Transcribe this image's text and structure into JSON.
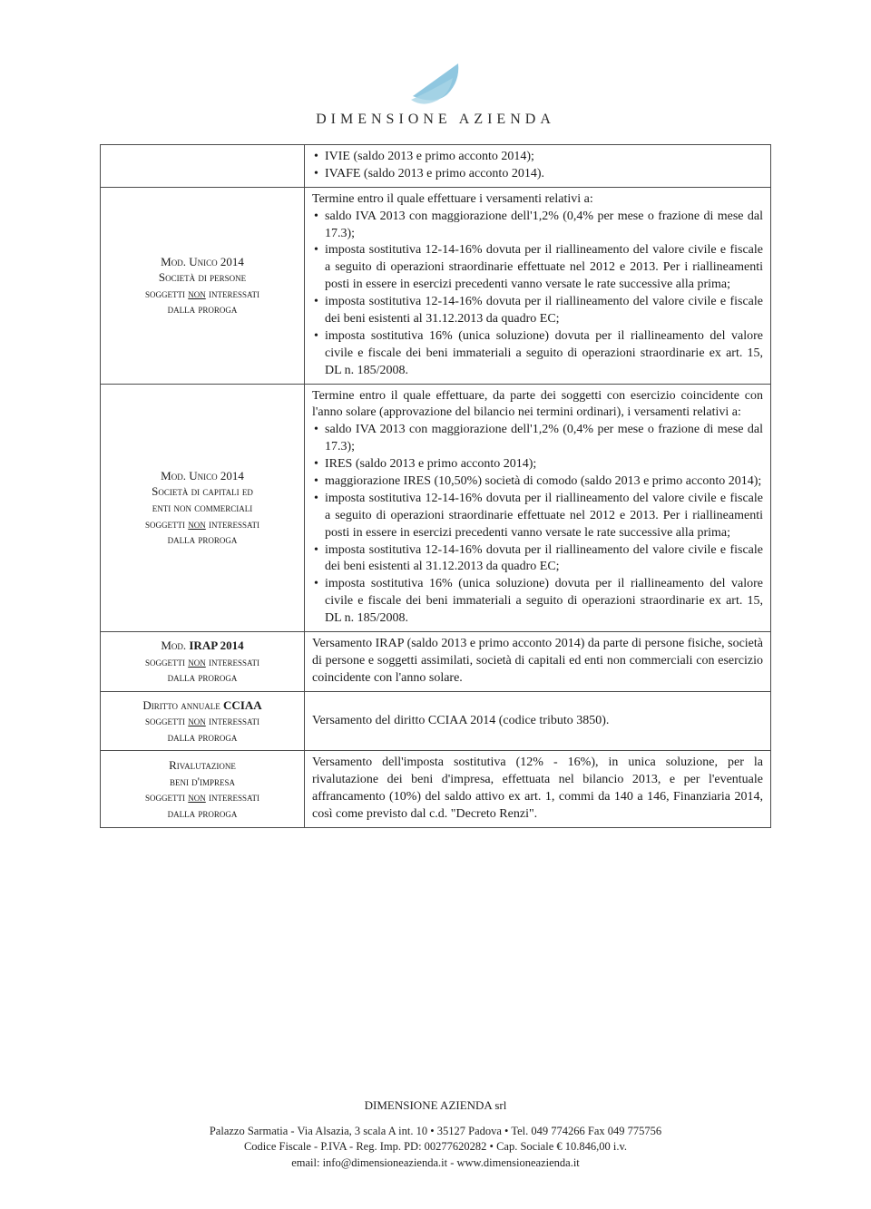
{
  "logo": {
    "text": "DIMENSIONE AZIENDA",
    "color": "#8fc7e0"
  },
  "rows": [
    {
      "left_html": "",
      "right_intro": "",
      "right_bullets": [
        "IVIE (saldo 2013 e primo acconto 2014);",
        "IVAFE (saldo 2013 e primo acconto 2014)."
      ]
    },
    {
      "left_lines": [
        {
          "text": "Mod. Unico 2014",
          "sc": true
        },
        {
          "text": "Società di persone",
          "sc": true
        },
        {
          "text_pre": "soggetti ",
          "underlined": "non",
          "text_post": " interessati",
          "sc": true
        },
        {
          "text": "dalla proroga",
          "sc": true
        }
      ],
      "right_intro": "Termine entro il quale effettuare i versamenti relativi a:",
      "right_bullets": [
        "saldo IVA 2013 con maggiorazione dell'1,2% (0,4% per mese o frazione di mese dal 17.3);",
        "imposta sostitutiva 12-14-16% dovuta per il riallineamento del valore civile e fiscale a seguito di operazioni straordinarie effettuate nel 2012 e 2013. Per i riallineamenti posti in essere in esercizi precedenti vanno versate le rate successive alla prima;",
        "imposta sostitutiva 12-14-16% dovuta per il riallineamento del valore civile e fiscale dei beni esistenti al 31.12.2013 da quadro EC;",
        "imposta sostitutiva 16% (unica soluzione) dovuta per il riallineamento del valore civile e fiscale dei beni immateriali a seguito di operazioni straordinarie ex art. 15, DL n. 185/2008."
      ]
    },
    {
      "left_lines": [
        {
          "text": "Mod. Unico 2014",
          "sc": true
        },
        {
          "text": "Società di capitali ed",
          "sc": true
        },
        {
          "text": "enti non commerciali",
          "sc": true
        },
        {
          "text_pre": "soggetti ",
          "underlined": "non",
          "text_post": " interessati",
          "sc": true
        },
        {
          "text": "dalla proroga",
          "sc": true
        }
      ],
      "right_intro": "Termine entro il quale effettuare, da parte dei soggetti con esercizio coincidente con l'anno solare (approvazione del bilancio nei termini ordinari), i versamenti relativi a:",
      "right_bullets": [
        "saldo IVA 2013 con maggiorazione dell'1,2% (0,4% per mese o frazione di mese dal 17.3);",
        "IRES (saldo 2013 e primo acconto 2014);",
        "maggiorazione IRES (10,50%) società di comodo (saldo 2013 e primo acconto 2014);",
        "imposta sostitutiva 12-14-16% dovuta per il riallineamento del valore civile e fiscale a seguito di operazioni straordinarie effettuate nel 2012 e 2013. Per i riallineamenti posti in essere in esercizi precedenti vanno versate le rate successive alla prima;",
        "imposta sostitutiva 12-14-16% dovuta per il riallineamento del valore civile e fiscale dei beni esistenti al 31.12.2013 da quadro EC;",
        "imposta sostitutiva 16% (unica soluzione) dovuta per il riallineamento del valore civile e fiscale dei beni immateriali a seguito di operazioni straordinarie ex art. 15, DL n. 185/2008."
      ]
    },
    {
      "left_lines": [
        {
          "text_pre": "Mod. ",
          "bold": "IRAP 2014",
          "sc": true
        },
        {
          "text_pre": "soggetti ",
          "underlined": "non",
          "text_post": " interessati",
          "sc": true
        },
        {
          "text": "dalla proroga",
          "sc": true
        }
      ],
      "right_text": "Versamento IRAP (saldo 2013 e primo acconto 2014) da parte di persone fisiche, società di persone e soggetti assimilati, società di capitali ed enti non commerciali con esercizio coincidente con l'anno solare."
    },
    {
      "left_lines": [
        {
          "text_pre": "Diritto annuale ",
          "bold": "CCIAA",
          "sc": true
        },
        {
          "text_pre": "soggetti ",
          "underlined": "non",
          "text_post": " interessati",
          "sc": true
        },
        {
          "text": "dalla proroga",
          "sc": true
        }
      ],
      "right_text": "Versamento del diritto CCIAA 2014 (codice tributo 3850)."
    },
    {
      "left_lines": [
        {
          "text": "Rivalutazione",
          "sc": true
        },
        {
          "text": "beni d'impresa",
          "sc": true
        },
        {
          "text_pre": "soggetti ",
          "underlined": "non",
          "text_post": " interessati",
          "sc": true
        },
        {
          "text": "dalla proroga",
          "sc": true
        }
      ],
      "right_text": "Versamento dell'imposta sostitutiva (12% - 16%), in unica soluzione, per la rivalutazione dei beni d'impresa, effettuata nel bilancio 2013, e per l'eventuale affrancamento (10%) del saldo attivo ex art. 1, commi da 140 a 146, Finanziaria 2014, così come previsto dal c.d. \"Decreto Renzi\"."
    }
  ],
  "footer": {
    "company": "DIMENSIONE AZIENDA srl",
    "line1": "Palazzo Sarmatia - Via Alsazia, 3 scala A int. 10 • 35127 Padova • Tel. 049 774266 Fax 049 775756",
    "line2": "Codice Fiscale - P.IVA - Reg. Imp. PD: 00277620282 • Cap. Sociale € 10.846,00 i.v.",
    "line3": "email:  info@dimensioneazienda.it - www.dimensioneazienda.it"
  },
  "colors": {
    "border": "#4a4a4a",
    "text": "#1a1a1a",
    "logo_blue": "#8fc7e0",
    "background": "#ffffff"
  },
  "fontsizes": {
    "body": 14,
    "left_col": 13,
    "footer": 12.5,
    "logo": 16
  }
}
